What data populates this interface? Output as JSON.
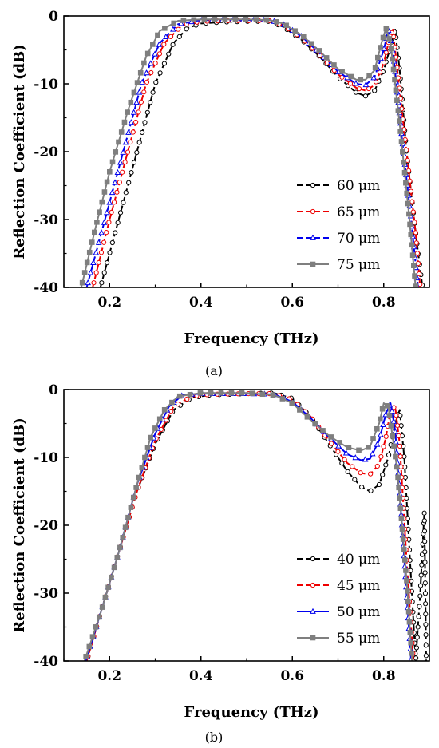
{
  "chart_data": [
    {
      "type": "line",
      "panel_label": "(a)",
      "xlabel": "Frequency (THz)",
      "ylabel": "Reflection Coefficient (dB)",
      "xlim": [
        0.1,
        0.9
      ],
      "ylim": [
        -40,
        0
      ],
      "xticks": [
        "0.2",
        "0.4",
        "0.6",
        "0.8"
      ],
      "yticks": [
        "0",
        "-10",
        "-20",
        "-30",
        "-40"
      ],
      "grid": false,
      "legend_position": "bottom-right",
      "series": [
        {
          "name": "60 μm",
          "color": "#000000",
          "dash": "7,4",
          "marker": "open-circle",
          "points": [
            [
              0.18,
              -40
            ],
            [
              0.22,
              -30
            ],
            [
              0.26,
              -20
            ],
            [
              0.3,
              -10
            ],
            [
              0.34,
              -4
            ],
            [
              0.37,
              -1.8
            ],
            [
              0.4,
              -1.1
            ],
            [
              0.45,
              -0.9
            ],
            [
              0.5,
              -0.8
            ],
            [
              0.55,
              -0.8
            ],
            [
              0.58,
              -1.6
            ],
            [
              0.62,
              -3.5
            ],
            [
              0.66,
              -6
            ],
            [
              0.7,
              -9
            ],
            [
              0.74,
              -11.3
            ],
            [
              0.76,
              -11.8
            ],
            [
              0.78,
              -11
            ],
            [
              0.8,
              -8
            ],
            [
              0.815,
              -4.5
            ],
            [
              0.825,
              -2
            ],
            [
              0.835,
              -8
            ],
            [
              0.85,
              -20
            ],
            [
              0.87,
              -32
            ],
            [
              0.885,
              -40
            ]
          ]
        },
        {
          "name": "65 μm",
          "color": "#ee0000",
          "dash": "7,4",
          "marker": "open-circle",
          "points": [
            [
              0.163,
              -40
            ],
            [
              0.2,
              -30
            ],
            [
              0.24,
              -20
            ],
            [
              0.28,
              -10
            ],
            [
              0.32,
              -4
            ],
            [
              0.36,
              -1.3
            ],
            [
              0.4,
              -0.8
            ],
            [
              0.45,
              -0.7
            ],
            [
              0.5,
              -0.7
            ],
            [
              0.55,
              -0.7
            ],
            [
              0.58,
              -1.4
            ],
            [
              0.62,
              -3.2
            ],
            [
              0.66,
              -5.8
            ],
            [
              0.7,
              -8.6
            ],
            [
              0.74,
              -10.6
            ],
            [
              0.76,
              -11
            ],
            [
              0.78,
              -10.2
            ],
            [
              0.8,
              -7
            ],
            [
              0.81,
              -4
            ],
            [
              0.82,
              -2
            ],
            [
              0.83,
              -8
            ],
            [
              0.85,
              -20
            ],
            [
              0.87,
              -32
            ],
            [
              0.88,
              -40
            ]
          ]
        },
        {
          "name": "70 μm",
          "color": "#0000ee",
          "dash": "7,4",
          "marker": "open-triangle",
          "points": [
            [
              0.15,
              -40
            ],
            [
              0.19,
              -30
            ],
            [
              0.23,
              -20
            ],
            [
              0.27,
              -10
            ],
            [
              0.31,
              -4
            ],
            [
              0.35,
              -1.2
            ],
            [
              0.4,
              -0.6
            ],
            [
              0.45,
              -0.6
            ],
            [
              0.5,
              -0.6
            ],
            [
              0.55,
              -0.6
            ],
            [
              0.58,
              -1.2
            ],
            [
              0.62,
              -3
            ],
            [
              0.66,
              -5.5
            ],
            [
              0.7,
              -8.2
            ],
            [
              0.74,
              -10
            ],
            [
              0.76,
              -10.2
            ],
            [
              0.78,
              -9
            ],
            [
              0.8,
              -5
            ],
            [
              0.81,
              -2
            ],
            [
              0.82,
              -5
            ],
            [
              0.84,
              -18
            ],
            [
              0.86,
              -30
            ],
            [
              0.875,
              -40
            ]
          ]
        },
        {
          "name": "75 μm",
          "color": "#7f7f7f",
          "dash": "",
          "marker": "filled-square",
          "points": [
            [
              0.138,
              -40
            ],
            [
              0.17,
              -31
            ],
            [
              0.2,
              -23
            ],
            [
              0.24,
              -14
            ],
            [
              0.28,
              -6
            ],
            [
              0.31,
              -2.2
            ],
            [
              0.35,
              -0.7
            ],
            [
              0.4,
              -0.5
            ],
            [
              0.45,
              -0.5
            ],
            [
              0.5,
              -0.5
            ],
            [
              0.55,
              -0.6
            ],
            [
              0.58,
              -1.1
            ],
            [
              0.62,
              -2.8
            ],
            [
              0.66,
              -5.2
            ],
            [
              0.7,
              -7.8
            ],
            [
              0.74,
              -9.4
            ],
            [
              0.76,
              -9.4
            ],
            [
              0.78,
              -8
            ],
            [
              0.795,
              -4
            ],
            [
              0.805,
              -1.8
            ],
            [
              0.815,
              -4
            ],
            [
              0.835,
              -16
            ],
            [
              0.855,
              -29
            ],
            [
              0.87,
              -40
            ]
          ]
        }
      ]
    },
    {
      "type": "line",
      "panel_label": "(b)",
      "xlabel": "Frequency (THz)",
      "ylabel": "Reflection Coefficient (dB)",
      "xlim": [
        0.1,
        0.9
      ],
      "ylim": [
        -40,
        0
      ],
      "xticks": [
        "0.2",
        "0.4",
        "0.6",
        "0.8"
      ],
      "yticks": [
        "0",
        "-10",
        "-20",
        "-30",
        "-40"
      ],
      "grid": false,
      "legend_position": "bottom-right",
      "series": [
        {
          "name": "40 μm",
          "color": "#000000",
          "dash": "7,4",
          "marker": "open-circle",
          "points": [
            [
              0.15,
              -40
            ],
            [
              0.18,
              -33
            ],
            [
              0.22,
              -24
            ],
            [
              0.26,
              -15
            ],
            [
              0.3,
              -8
            ],
            [
              0.34,
              -3
            ],
            [
              0.38,
              -1.2
            ],
            [
              0.42,
              -0.8
            ],
            [
              0.5,
              -0.6
            ],
            [
              0.56,
              -0.5
            ],
            [
              0.6,
              -1.3
            ],
            [
              0.64,
              -4
            ],
            [
              0.68,
              -8
            ],
            [
              0.72,
              -12
            ],
            [
              0.75,
              -14.3
            ],
            [
              0.77,
              -15
            ],
            [
              0.79,
              -14
            ],
            [
              0.81,
              -10
            ],
            [
              0.825,
              -5
            ],
            [
              0.835,
              -3
            ],
            [
              0.845,
              -10
            ],
            [
              0.86,
              -28
            ],
            [
              0.87,
              -40
            ],
            [
              0.88,
              -30
            ],
            [
              0.889,
              -18
            ],
            [
              0.893,
              -40
            ]
          ]
        },
        {
          "name": "45 μm",
          "color": "#ee0000",
          "dash": "7,4",
          "marker": "open-circle",
          "points": [
            [
              0.15,
              -40
            ],
            [
              0.18,
              -33
            ],
            [
              0.22,
              -24
            ],
            [
              0.26,
              -15
            ],
            [
              0.3,
              -7.5
            ],
            [
              0.34,
              -2.5
            ],
            [
              0.38,
              -1
            ],
            [
              0.42,
              -0.7
            ],
            [
              0.5,
              -0.6
            ],
            [
              0.56,
              -0.6
            ],
            [
              0.6,
              -1.5
            ],
            [
              0.64,
              -4
            ],
            [
              0.68,
              -7.5
            ],
            [
              0.72,
              -10.8
            ],
            [
              0.75,
              -12.3
            ],
            [
              0.77,
              -12.5
            ],
            [
              0.79,
              -11
            ],
            [
              0.805,
              -7
            ],
            [
              0.815,
              -3
            ],
            [
              0.825,
              -2.5
            ],
            [
              0.835,
              -8
            ],
            [
              0.85,
              -25
            ],
            [
              0.865,
              -40
            ]
          ]
        },
        {
          "name": "50 μm",
          "color": "#0000ee",
          "dash": "",
          "marker": "open-triangle",
          "points": [
            [
              0.148,
              -40
            ],
            [
              0.18,
              -33
            ],
            [
              0.22,
              -24
            ],
            [
              0.26,
              -14
            ],
            [
              0.3,
              -6.5
            ],
            [
              0.33,
              -2.5
            ],
            [
              0.36,
              -0.8
            ],
            [
              0.4,
              -0.6
            ],
            [
              0.5,
              -0.6
            ],
            [
              0.56,
              -0.7
            ],
            [
              0.6,
              -1.8
            ],
            [
              0.64,
              -4.2
            ],
            [
              0.68,
              -7
            ],
            [
              0.72,
              -9.5
            ],
            [
              0.75,
              -10.4
            ],
            [
              0.77,
              -10.2
            ],
            [
              0.79,
              -7.5
            ],
            [
              0.805,
              -3.5
            ],
            [
              0.815,
              -2
            ],
            [
              0.825,
              -6
            ],
            [
              0.84,
              -20
            ],
            [
              0.86,
              -40
            ]
          ]
        },
        {
          "name": "55 μm",
          "color": "#7f7f7f",
          "dash": "",
          "marker": "filled-square",
          "points": [
            [
              0.145,
              -40
            ],
            [
              0.18,
              -33
            ],
            [
              0.22,
              -24
            ],
            [
              0.26,
              -14
            ],
            [
              0.29,
              -7
            ],
            [
              0.32,
              -3
            ],
            [
              0.35,
              -1
            ],
            [
              0.4,
              -0.5
            ],
            [
              0.5,
              -0.5
            ],
            [
              0.56,
              -0.8
            ],
            [
              0.6,
              -2
            ],
            [
              0.64,
              -4.5
            ],
            [
              0.68,
              -6.8
            ],
            [
              0.72,
              -8.5
            ],
            [
              0.75,
              -9
            ],
            [
              0.77,
              -8.4
            ],
            [
              0.79,
              -5
            ],
            [
              0.8,
              -2
            ],
            [
              0.81,
              -2.5
            ],
            [
              0.83,
              -12
            ],
            [
              0.85,
              -28
            ],
            [
              0.862,
              -40
            ]
          ]
        }
      ]
    }
  ]
}
